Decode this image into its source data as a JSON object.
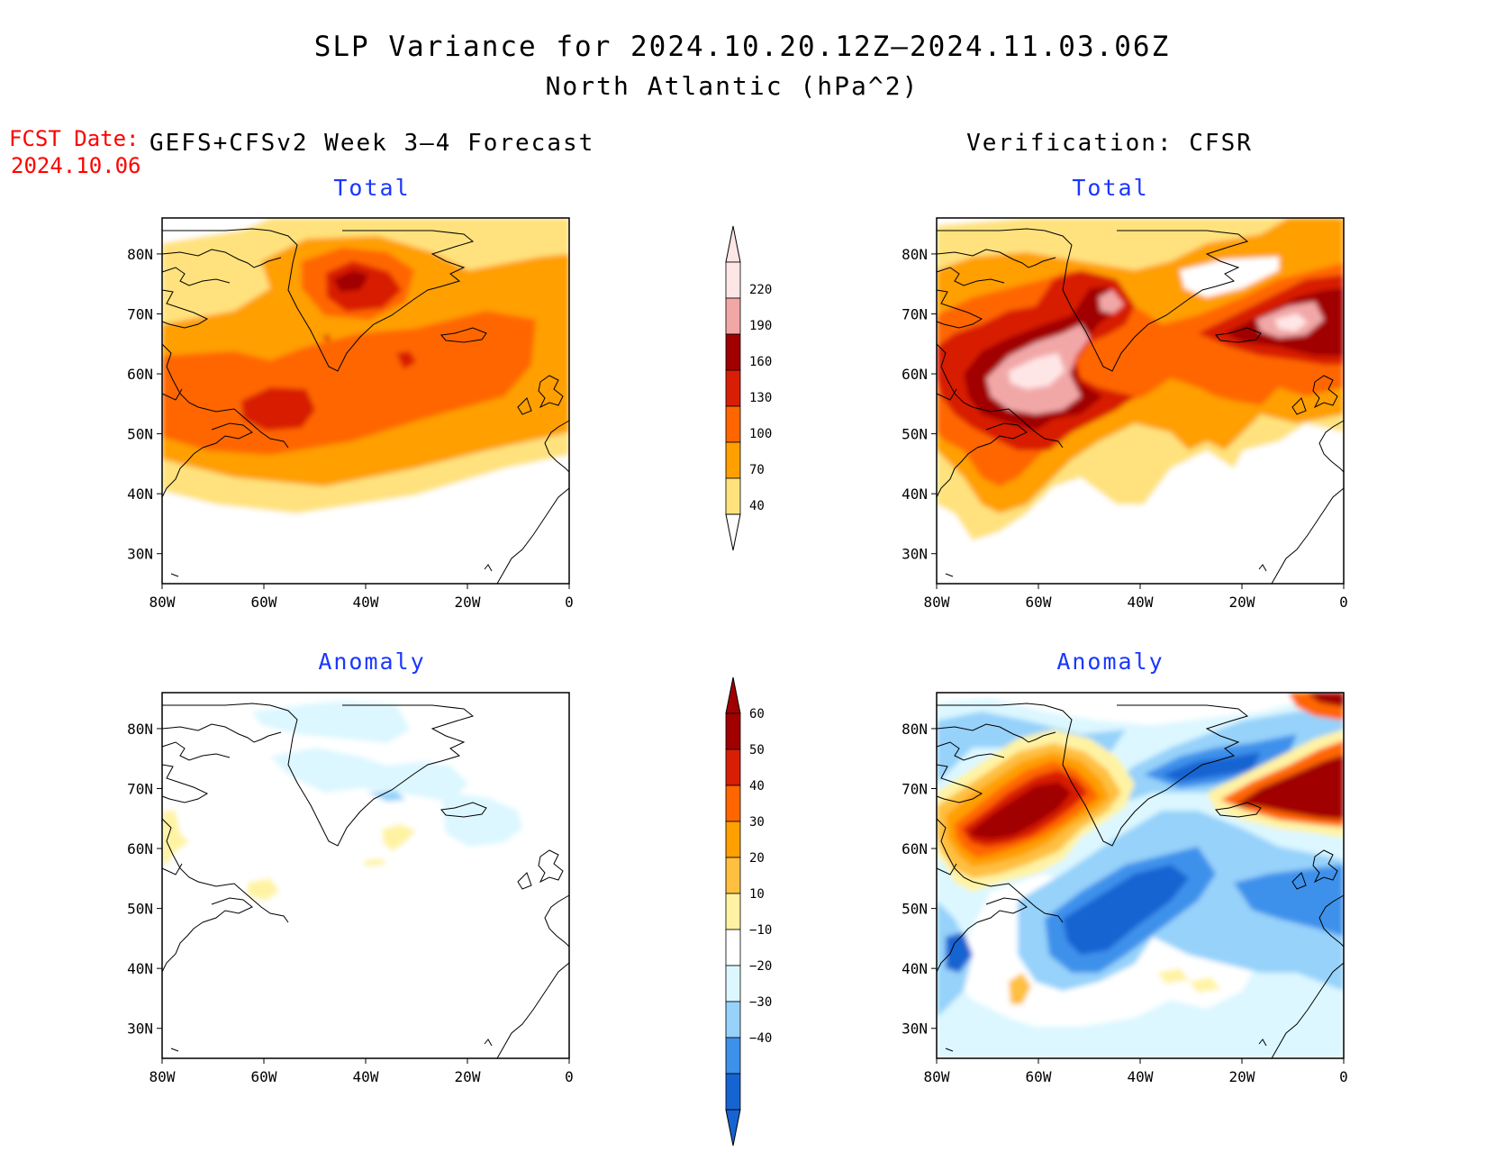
{
  "title": {
    "line1": "SLP Variance for 2024.10.20.12Z–2024.11.03.06Z",
    "line2": "North Atlantic (hPa^2)"
  },
  "fcst_date": {
    "label": "FCST Date:",
    "value": "2024.10.06"
  },
  "columns": {
    "left": "GEFS+CFSv2 Week 3–4 Forecast",
    "right": "Verification: CFSR"
  },
  "rows": {
    "top": "Total",
    "bottom": "Anomaly"
  },
  "axes": {
    "lat_labels": [
      "80N",
      "70N",
      "60N",
      "50N",
      "40N",
      "30N"
    ],
    "lon_labels": [
      "80W",
      "60W",
      "40W",
      "20W",
      "0"
    ]
  },
  "colorbars": {
    "total": {
      "levels": [
        "220",
        "190",
        "160",
        "130",
        "100",
        "70",
        "40"
      ],
      "colors": [
        "#ffe6e6",
        "#f2a7a7",
        "#a10000",
        "#d81e05",
        "#ff6600",
        "#ff9f00",
        "#ffe27d"
      ]
    },
    "anomaly": {
      "levels": [
        "60",
        "50",
        "40",
        "30",
        "20",
        "10",
        "−10",
        "−20",
        "−30",
        "−40"
      ],
      "colors_warm": [
        "#a10000",
        "#d81e05",
        "#ff6600",
        "#ff9f00",
        "#ffbf3f",
        "#fff3a3"
      ],
      "color_neutral": "#ffffff",
      "colors_cool": [
        "#dcf7ff",
        "#96d2fa",
        "#3c91eb",
        "#1664d2"
      ]
    }
  },
  "colors": {
    "red_text": "#ff0000",
    "blue_text": "#1a37ff"
  }
}
